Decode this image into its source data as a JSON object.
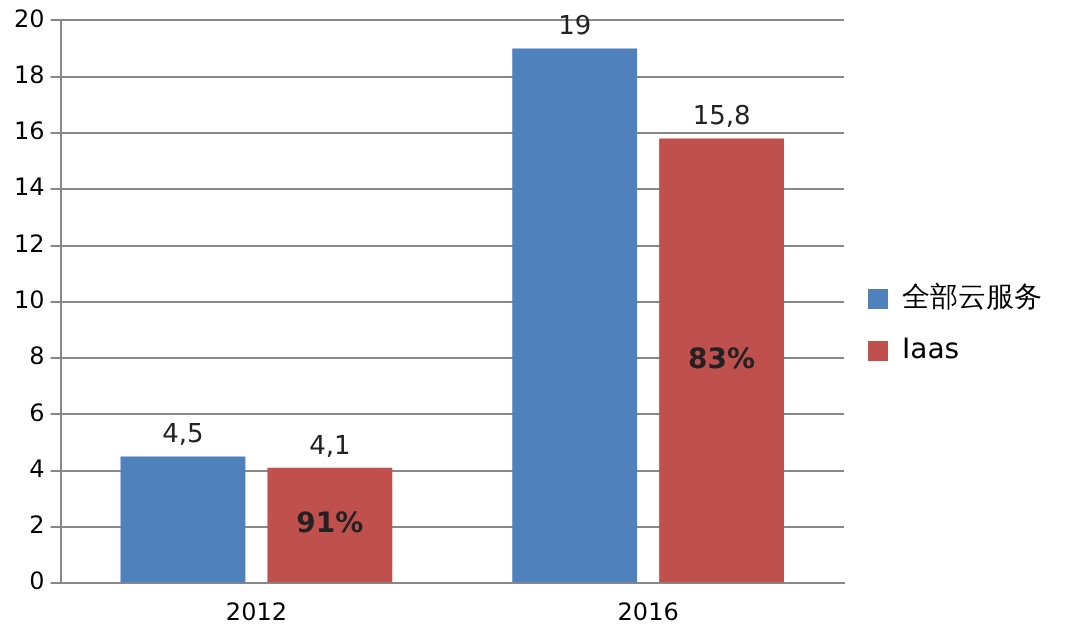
{
  "chart_data": {
    "type": "bar",
    "categories": [
      "2012",
      "2016"
    ],
    "series": [
      {
        "name": "全部云服务",
        "color": "#4f81bd",
        "values": [
          4.5,
          19
        ],
        "value_labels": [
          "4,5",
          "19"
        ]
      },
      {
        "name": "Iaas",
        "color": "#c0504d",
        "values": [
          4.1,
          15.8
        ],
        "value_labels": [
          "4,1",
          "15,8"
        ]
      }
    ],
    "ylim": [
      0,
      20
    ],
    "yticks": [
      0,
      2,
      4,
      6,
      8,
      10,
      12,
      14,
      16,
      18,
      20
    ],
    "grid": "y",
    "legend": "right",
    "annotations": [
      "91%",
      "83%"
    ]
  }
}
